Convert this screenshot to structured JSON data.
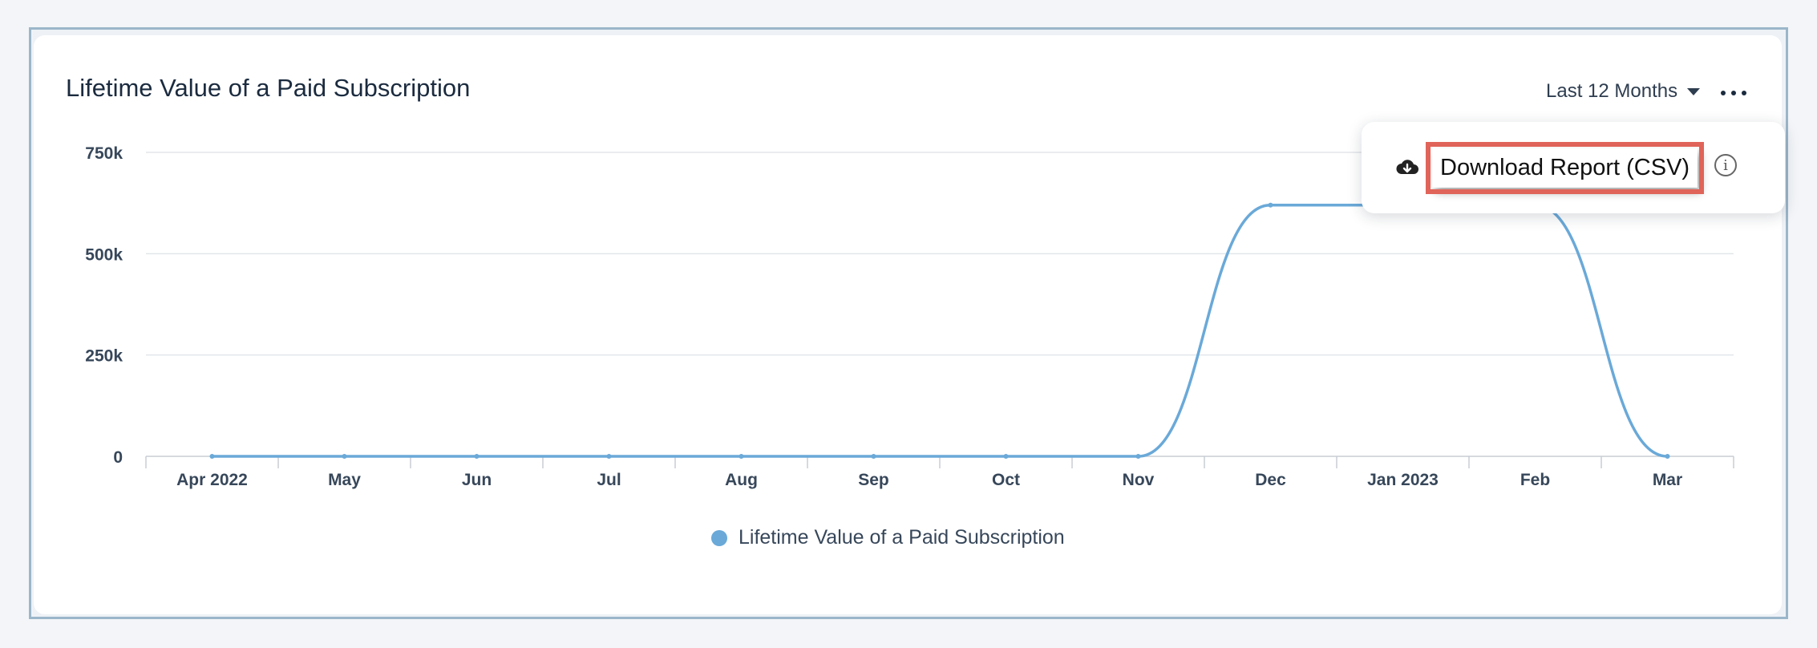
{
  "card": {
    "title": "Lifetime Value of a Paid Subscription",
    "range_label": "Last 12 Months",
    "more_icon": "ellipsis-icon"
  },
  "menu": {
    "download_label": "Download Report (CSV)",
    "download_icon": "cloud-download-icon",
    "info_icon_glyph": "i"
  },
  "colors": {
    "series": "#6aa9d8",
    "highlight_box": "#e06459",
    "grid": "#e3e6ea",
    "axis": "#c9ced4"
  },
  "chart_data": {
    "type": "line",
    "categories": [
      "Apr 2022",
      "May",
      "Jun",
      "Jul",
      "Aug",
      "Sep",
      "Oct",
      "Nov",
      "Dec",
      "Jan 2023",
      "Feb",
      "Mar"
    ],
    "series": [
      {
        "name": "Lifetime Value of a Paid Subscription",
        "values": [
          0,
          0,
          0,
          0,
          0,
          0,
          0,
          0,
          620000,
          620000,
          620000,
          0
        ]
      }
    ],
    "yticks": [
      "0",
      "250k",
      "500k",
      "750k"
    ],
    "ytick_values": [
      0,
      250000,
      500000,
      750000
    ],
    "ylim": [
      0,
      750000
    ],
    "grid": true,
    "legend": "bottom-center"
  }
}
